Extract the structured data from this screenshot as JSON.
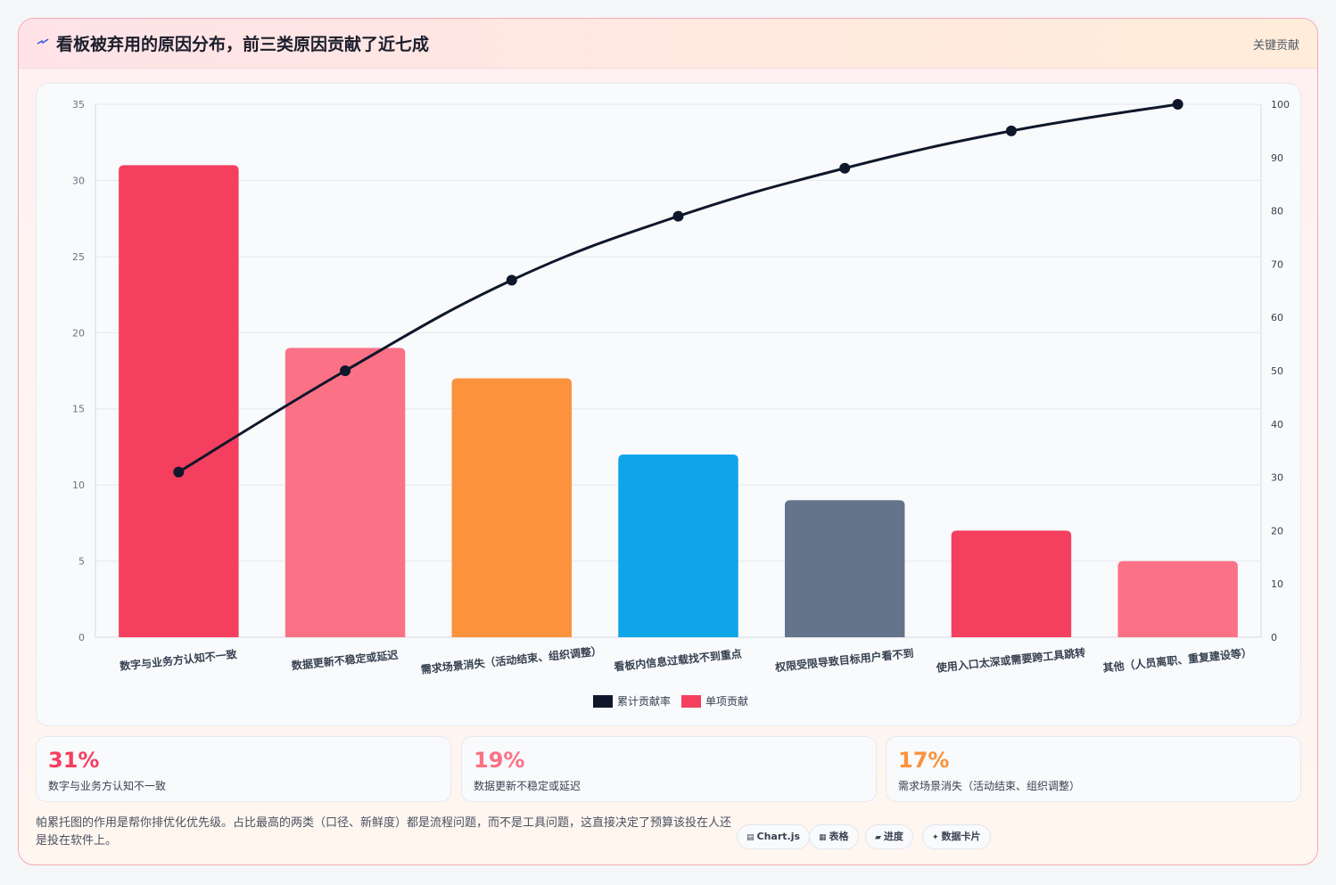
{
  "header": {
    "title": "看板被弃用的原因分布，前三类原因贡献了近七成",
    "tag": "关键贡献"
  },
  "colors": {
    "red": "#f43f5e",
    "pink": "#fb7185",
    "orange": "#fb923c",
    "blue": "#0ea5e9",
    "slate": "#64748b",
    "line": "#0f172a"
  },
  "chart_data": {
    "type": "bar",
    "categories": [
      "数字与业务方认知不一致",
      "数据更新不稳定或延迟",
      "需求场景消失（活动结束、组织调整）",
      "看板内信息过载找不到重点",
      "权限受限导致目标用户看不到",
      "使用入口太深或需要跨工具跳转",
      "其他（人员离职、重复建设等）"
    ],
    "series": [
      {
        "name": "单项贡献",
        "type": "bar",
        "axis": "left",
        "values": [
          31,
          19,
          17,
          12,
          9,
          7,
          5
        ]
      },
      {
        "name": "累计贡献率",
        "type": "line",
        "axis": "right",
        "values": [
          31,
          50,
          67,
          79,
          88,
          95,
          100
        ]
      }
    ],
    "bar_colors": [
      "#f43f5e",
      "#fb7185",
      "#fb923c",
      "#0ea5e9",
      "#64748b",
      "#f43f5e",
      "#fb7185"
    ],
    "ylim_left": [
      0,
      35
    ],
    "yticks_left": [
      "0",
      "5",
      "10",
      "15",
      "20",
      "25",
      "30",
      "35"
    ],
    "ylim_right": [
      0,
      100
    ],
    "yticks_right": [
      "0",
      "10",
      "20",
      "30",
      "40",
      "50",
      "60",
      "70",
      "80",
      "90",
      "100"
    ],
    "legend": [
      "累计贡献率",
      "单项贡献"
    ],
    "legend_position": "bottom",
    "grid": true
  },
  "stats": [
    {
      "pct": "31%",
      "label": "数字与业务方认知不一致",
      "color": "#f43f5e"
    },
    {
      "pct": "19%",
      "label": "数据更新不稳定或延迟",
      "color": "#fb7185"
    },
    {
      "pct": "17%",
      "label": "需求场景消失（活动结束、组织调整）",
      "color": "#fb923c"
    }
  ],
  "note": "帕累托图的作用是帮你排优化优先级。占比最高的两类（口径、新鲜度）都是流程问题，而不是工具问题，这直接决定了预算该投在人还是投在软件上。",
  "pills": [
    {
      "icon": "▤",
      "label": "Chart.js"
    },
    {
      "icon": "▦",
      "label": "表格"
    },
    {
      "icon": "▰",
      "label": "进度"
    },
    {
      "icon": "✦",
      "label": "数据卡片"
    }
  ]
}
